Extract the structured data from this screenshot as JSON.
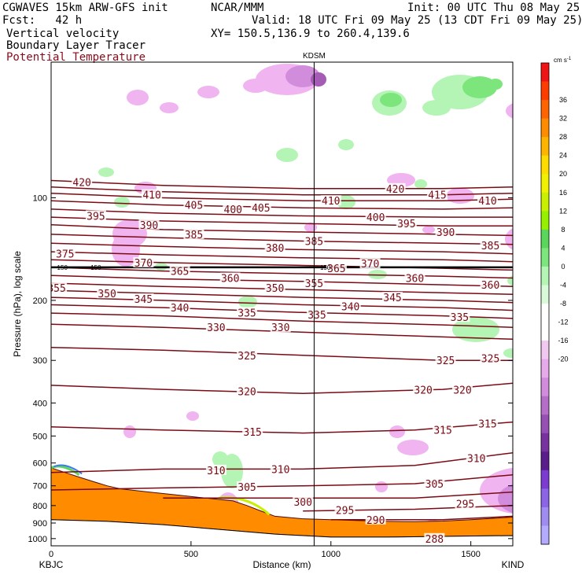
{
  "header": {
    "model": "CGWAVES 15km ARW-GFS init",
    "org": "NCAR/MMM",
    "init": "Init: 00 UTC Thu 08 May 25",
    "fcst": "Fcst:   42 h",
    "valid": "Valid: 18 UTC Fri 09 May 25 (13 CDT Fri 09 May 25)",
    "field1": "Vertical velocity",
    "xy": "XY= 150.5,136.9 to 260.4,139.6",
    "field2": "Boundary Layer Tracer",
    "field3": "Potential Temperature"
  },
  "colors": {
    "theta": "#7a0a14",
    "terrain": "#ff8c00",
    "up_light": "#b4f4b4",
    "up_mid": "#7ce67c",
    "down_light": "#f0b4f0",
    "down_mid": "#d28cdc",
    "down_dark": "#a45cb4"
  },
  "chart_data": {
    "type": "cross-section",
    "station_top": "KDSM",
    "x_left_label": "KBJC",
    "x_right_label": "KIND",
    "xlabel": "Distance (km)",
    "ylabel": "Pressure (hPa), log scale",
    "xlim": [
      0,
      1650
    ],
    "ylim_hpa": [
      1050,
      40
    ],
    "y_log": true,
    "xticks": [
      "0",
      "500",
      "1000",
      "1500"
    ],
    "xtick_values": [
      0,
      500,
      1000,
      1500
    ],
    "yticks": [
      "100",
      "200",
      "300",
      "400",
      "500",
      "600",
      "700",
      "800",
      "900",
      "1000"
    ],
    "ytick_values": [
      100,
      200,
      300,
      400,
      500,
      600,
      700,
      800,
      900,
      1000
    ],
    "station_x_km": 940,
    "colorbar": {
      "unit": "cm s",
      "unit_sup": "-1",
      "labels": [
        "36",
        "32",
        "28",
        "24",
        "20",
        "16",
        "12",
        "8",
        "4",
        "0",
        "-4",
        "-8",
        "-12",
        "-16",
        "-20"
      ],
      "colors": [
        "#f01414",
        "#ff3c00",
        "#ff6400",
        "#ff8c00",
        "#ffb400",
        "#ffdc00",
        "#f0f000",
        "#c8f000",
        "#96f000",
        "#5ad75a",
        "#7ce67c",
        "#b4f4b4",
        "#d8fad8",
        "#ffffff",
        "#ffffff",
        "#f0c8f0",
        "#e6aaea",
        "#d28cdc",
        "#b46ec8",
        "#9650b4",
        "#7832a0",
        "#5a1e8c",
        "#7c3cd2",
        "#8c64e6",
        "#a08cf0",
        "#b4aaff"
      ]
    },
    "isentropes": [
      {
        "value": 420,
        "pts": [
          [
            0,
            89
          ],
          [
            400,
            92
          ],
          [
            900,
            94
          ],
          [
            1400,
            94
          ],
          [
            1650,
            93
          ]
        ]
      },
      {
        "value": 415,
        "pts": [
          [
            0,
            93
          ],
          [
            400,
            96
          ],
          [
            900,
            98
          ],
          [
            1400,
            98
          ],
          [
            1650,
            97
          ]
        ]
      },
      {
        "value": 410,
        "pts": [
          [
            0,
            97
          ],
          [
            400,
            100
          ],
          [
            900,
            102
          ],
          [
            1400,
            102
          ],
          [
            1650,
            101
          ]
        ]
      },
      {
        "value": 405,
        "pts": [
          [
            0,
            102
          ],
          [
            400,
            105
          ],
          [
            900,
            107
          ],
          [
            1400,
            108
          ],
          [
            1650,
            107
          ]
        ]
      },
      {
        "value": 400,
        "pts": [
          [
            0,
            108
          ],
          [
            400,
            111
          ],
          [
            900,
            113
          ],
          [
            1400,
            114
          ],
          [
            1650,
            114
          ]
        ]
      },
      {
        "value": 395,
        "pts": [
          [
            0,
            114
          ],
          [
            400,
            117
          ],
          [
            900,
            119
          ],
          [
            1400,
            121
          ],
          [
            1650,
            121
          ]
        ]
      },
      {
        "value": 390,
        "pts": [
          [
            0,
            120
          ],
          [
            400,
            124
          ],
          [
            900,
            126
          ],
          [
            1400,
            128
          ],
          [
            1650,
            129
          ]
        ]
      },
      {
        "value": 385,
        "pts": [
          [
            0,
            128
          ],
          [
            400,
            131
          ],
          [
            900,
            134
          ],
          [
            1400,
            136
          ],
          [
            1650,
            137
          ]
        ]
      },
      {
        "value": 380,
        "pts": [
          [
            0,
            136
          ],
          [
            400,
            139
          ],
          [
            900,
            142
          ],
          [
            1400,
            144
          ],
          [
            1650,
            146
          ]
        ]
      },
      {
        "value": 375,
        "pts": [
          [
            0,
            144
          ],
          [
            400,
            147
          ],
          [
            900,
            150
          ],
          [
            1400,
            152
          ],
          [
            1650,
            154
          ]
        ]
      },
      {
        "value": 370,
        "pts": [
          [
            0,
            152
          ],
          [
            400,
            155
          ],
          [
            900,
            158
          ],
          [
            1400,
            161
          ],
          [
            1650,
            163
          ]
        ]
      },
      {
        "value": 365,
        "pts": [
          [
            0,
            160
          ],
          [
            400,
            164
          ],
          [
            900,
            167
          ],
          [
            1400,
            170
          ],
          [
            1650,
            172
          ]
        ]
      },
      {
        "value": 360,
        "pts": [
          [
            0,
            169
          ],
          [
            400,
            173
          ],
          [
            900,
            176
          ],
          [
            1400,
            180
          ],
          [
            1650,
            182
          ]
        ]
      },
      {
        "value": 355,
        "pts": [
          [
            0,
            178
          ],
          [
            400,
            182
          ],
          [
            900,
            186
          ],
          [
            1400,
            190
          ],
          [
            1650,
            192
          ]
        ]
      },
      {
        "value": 350,
        "pts": [
          [
            0,
            187
          ],
          [
            400,
            191
          ],
          [
            900,
            196
          ],
          [
            1400,
            200
          ],
          [
            1650,
            203
          ]
        ]
      },
      {
        "value": 345,
        "pts": [
          [
            0,
            196
          ],
          [
            400,
            200
          ],
          [
            900,
            206
          ],
          [
            1400,
            210
          ],
          [
            1650,
            214
          ]
        ]
      },
      {
        "value": 340,
        "pts": [
          [
            0,
            206
          ],
          [
            400,
            210
          ],
          [
            900,
            217
          ],
          [
            1400,
            222
          ],
          [
            1650,
            226
          ]
        ]
      },
      {
        "value": 335,
        "pts": [
          [
            0,
            218
          ],
          [
            400,
            222
          ],
          [
            900,
            230
          ],
          [
            1400,
            236
          ],
          [
            1650,
            240
          ]
        ]
      },
      {
        "value": 330,
        "pts": [
          [
            0,
            235
          ],
          [
            400,
            240
          ],
          [
            900,
            248
          ],
          [
            1400,
            256
          ],
          [
            1650,
            260
          ]
        ]
      },
      {
        "value": 325,
        "pts": [
          [
            0,
            275
          ],
          [
            400,
            280
          ],
          [
            900,
            290
          ],
          [
            1400,
            300
          ],
          [
            1650,
            300
          ]
        ]
      },
      {
        "value": 320,
        "pts": [
          [
            0,
            355
          ],
          [
            400,
            365
          ],
          [
            900,
            375
          ],
          [
            1400,
            365
          ],
          [
            1650,
            350
          ]
        ]
      },
      {
        "value": 315,
        "pts": [
          [
            0,
            470
          ],
          [
            400,
            480
          ],
          [
            900,
            490
          ],
          [
            1300,
            480
          ],
          [
            1650,
            455
          ]
        ]
      },
      {
        "value": 310,
        "pts": [
          [
            0,
            640
          ],
          [
            400,
            625
          ],
          [
            900,
            625
          ],
          [
            1300,
            610
          ],
          [
            1650,
            560
          ]
        ]
      },
      {
        "value": 305,
        "pts": [
          [
            0,
            720
          ],
          [
            400,
            710
          ],
          [
            900,
            700
          ],
          [
            1300,
            690
          ],
          [
            1650,
            650
          ]
        ]
      },
      {
        "value": 300,
        "pts": [
          [
            400,
            760
          ],
          [
            900,
            760
          ],
          [
            1300,
            760
          ],
          [
            1650,
            730
          ]
        ]
      },
      {
        "value": 295,
        "pts": [
          [
            900,
            830
          ],
          [
            1300,
            820
          ],
          [
            1650,
            800
          ]
        ]
      },
      {
        "value": 290,
        "pts": [
          [
            1000,
            880
          ],
          [
            1400,
            880
          ],
          [
            1650,
            860
          ]
        ]
      }
    ],
    "contour_labels": [
      {
        "text": "420",
        "x": 110,
        "p": 90
      },
      {
        "text": "420",
        "x": 1230,
        "p": 94
      },
      {
        "text": "410",
        "x": 360,
        "p": 98
      },
      {
        "text": "410",
        "x": 1000,
        "p": 102
      },
      {
        "text": "410",
        "x": 1560,
        "p": 102
      },
      {
        "text": "415",
        "x": 1380,
        "p": 98
      },
      {
        "text": "405",
        "x": 510,
        "p": 105
      },
      {
        "text": "405",
        "x": 750,
        "p": 107
      },
      {
        "text": "400",
        "x": 650,
        "p": 108
      },
      {
        "text": "400",
        "x": 1160,
        "p": 114
      },
      {
        "text": "395",
        "x": 160,
        "p": 113
      },
      {
        "text": "395",
        "x": 1270,
        "p": 119
      },
      {
        "text": "390",
        "x": 350,
        "p": 120
      },
      {
        "text": "390",
        "x": 1410,
        "p": 126
      },
      {
        "text": "385",
        "x": 510,
        "p": 128
      },
      {
        "text": "385",
        "x": 940,
        "p": 134
      },
      {
        "text": "385",
        "x": 1570,
        "p": 138
      },
      {
        "text": "380",
        "x": 800,
        "p": 140
      },
      {
        "text": "375",
        "x": 50,
        "p": 146
      },
      {
        "text": "370",
        "x": 330,
        "p": 155
      },
      {
        "text": "370",
        "x": 1140,
        "p": 156
      },
      {
        "text": "365",
        "x": 460,
        "p": 164
      },
      {
        "text": "365",
        "x": 1020,
        "p": 161
      },
      {
        "text": "360",
        "x": 640,
        "p": 172
      },
      {
        "text": "360",
        "x": 1300,
        "p": 172
      },
      {
        "text": "360",
        "x": 1570,
        "p": 180
      },
      {
        "text": "355",
        "x": 20,
        "p": 184
      },
      {
        "text": "355",
        "x": 940,
        "p": 178
      },
      {
        "text": "350",
        "x": 200,
        "p": 191
      },
      {
        "text": "350",
        "x": 800,
        "p": 184
      },
      {
        "text": "345",
        "x": 330,
        "p": 198
      },
      {
        "text": "345",
        "x": 1220,
        "p": 196
      },
      {
        "text": "340",
        "x": 460,
        "p": 210
      },
      {
        "text": "340",
        "x": 1070,
        "p": 208
      },
      {
        "text": "335",
        "x": 700,
        "p": 217
      },
      {
        "text": "335",
        "x": 950,
        "p": 220
      },
      {
        "text": "335",
        "x": 1460,
        "p": 224
      },
      {
        "text": "330",
        "x": 590,
        "p": 240
      },
      {
        "text": "330",
        "x": 820,
        "p": 240
      },
      {
        "text": "325",
        "x": 700,
        "p": 290
      },
      {
        "text": "325",
        "x": 1410,
        "p": 300
      },
      {
        "text": "325",
        "x": 1570,
        "p": 296
      },
      {
        "text": "320",
        "x": 700,
        "p": 370
      },
      {
        "text": "320",
        "x": 1330,
        "p": 366
      },
      {
        "text": "320",
        "x": 1470,
        "p": 366
      },
      {
        "text": "315",
        "x": 720,
        "p": 486
      },
      {
        "text": "315",
        "x": 1400,
        "p": 480
      },
      {
        "text": "315",
        "x": 1560,
        "p": 460
      },
      {
        "text": "310",
        "x": 590,
        "p": 630
      },
      {
        "text": "310",
        "x": 820,
        "p": 625
      },
      {
        "text": "310",
        "x": 1520,
        "p": 580
      },
      {
        "text": "305",
        "x": 700,
        "p": 705
      },
      {
        "text": "305",
        "x": 1370,
        "p": 690
      },
      {
        "text": "300",
        "x": 900,
        "p": 780
      },
      {
        "text": "295",
        "x": 1050,
        "p": 825
      },
      {
        "text": "295",
        "x": 1480,
        "p": 790
      },
      {
        "text": "290",
        "x": 1160,
        "p": 880
      },
      {
        "text": "288",
        "x": 1370,
        "p": 1000
      }
    ],
    "pbl_marks": [
      {
        "text": "150",
        "x": 40,
        "p": 160
      },
      {
        "text": "150",
        "x": 160,
        "p": 160
      },
      {
        "text": "150",
        "x": 980,
        "p": 160
      }
    ],
    "terrain_surface": [
      [
        0,
        620
      ],
      [
        50,
        640
      ],
      [
        100,
        660
      ],
      [
        150,
        680
      ],
      [
        200,
        700
      ],
      [
        250,
        715
      ],
      [
        350,
        730
      ],
      [
        450,
        745
      ],
      [
        550,
        760
      ],
      [
        650,
        775
      ],
      [
        700,
        800
      ],
      [
        750,
        830
      ],
      [
        800,
        860
      ],
      [
        900,
        875
      ],
      [
        1000,
        880
      ],
      [
        1100,
        885
      ],
      [
        1200,
        890
      ],
      [
        1300,
        892
      ],
      [
        1400,
        888
      ],
      [
        1500,
        880
      ],
      [
        1600,
        870
      ],
      [
        1650,
        865
      ]
    ],
    "terrain_base": [
      [
        0,
        880
      ],
      [
        200,
        890
      ],
      [
        400,
        910
      ],
      [
        600,
        940
      ],
      [
        800,
        970
      ],
      [
        1000,
        990
      ],
      [
        1200,
        990
      ],
      [
        1400,
        985
      ],
      [
        1650,
        980
      ]
    ]
  }
}
